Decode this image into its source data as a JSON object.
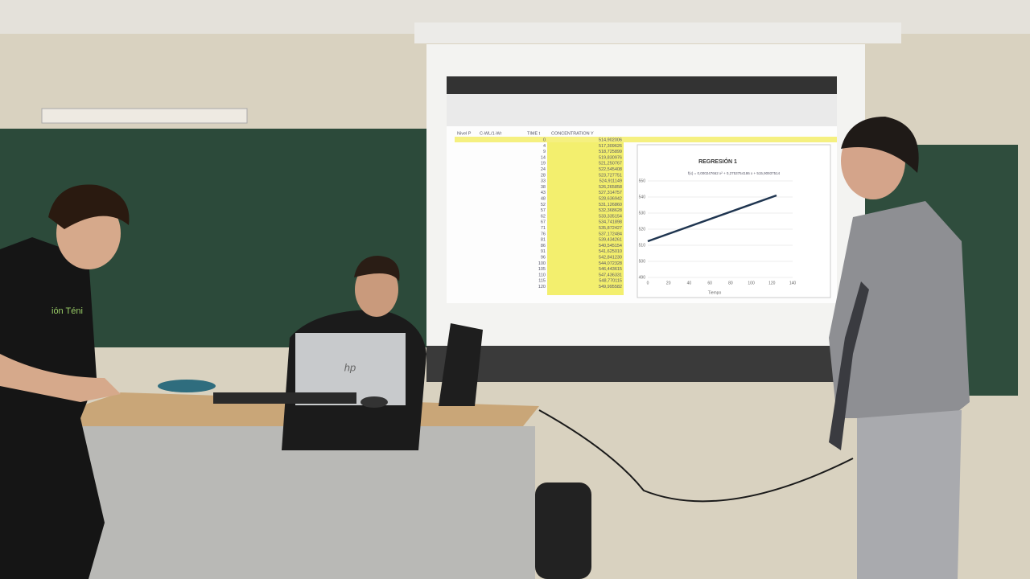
{
  "screen": {
    "sheet": {
      "headers": [
        "Nivel P",
        "C-WL/1-Wr",
        "TIME t",
        "CONCENTRATION Y"
      ],
      "time": [
        "0",
        "4",
        "9",
        "14",
        "19",
        "24",
        "28",
        "33",
        "38",
        "43",
        "48",
        "52",
        "57",
        "62",
        "67",
        "71",
        "76",
        "81",
        "86",
        "91",
        "96",
        "100",
        "105",
        "110",
        "115",
        "120"
      ],
      "concentration": [
        "514,902006",
        "517,309626",
        "518,725899",
        "519,830976",
        "521,250767",
        "522,545408",
        "523,727751",
        "524,911149",
        "526,265858",
        "527,314757",
        "528,636942",
        "531,126860",
        "532,368628",
        "533,335154",
        "534,741898",
        "535,872427",
        "537,172484",
        "539,434261",
        "540,545154",
        "541,625010",
        "542,841230",
        "544,072328",
        "546,443615",
        "547,436331",
        "548,770115",
        "549,995582"
      ]
    },
    "chart": {
      "title": "REGRESIÓN 1",
      "equation": "f(x) = 0,000247662 x² + 0,2753754186 x + 515,90937514",
      "x_label": "Tiempo",
      "x_ticks": [
        "0",
        "20",
        "40",
        "60",
        "80",
        "100",
        "120",
        "140"
      ],
      "y_ticks": [
        "550",
        "540",
        "530",
        "520",
        "510",
        "500",
        "490"
      ]
    }
  },
  "laptop_logo": "hp",
  "shirt_text": "ión Téni"
}
